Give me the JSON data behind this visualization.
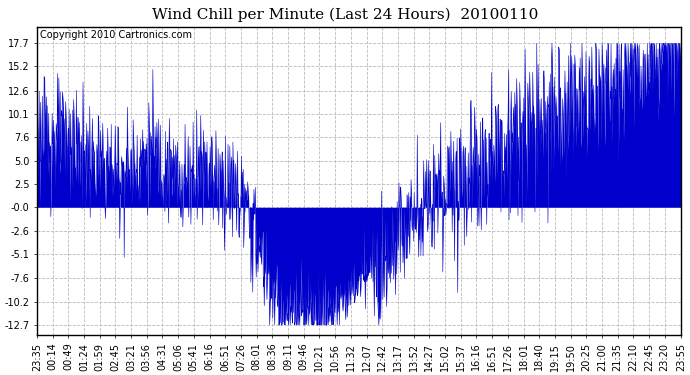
{
  "title": "Wind Chill per Minute (Last 24 Hours)  20100110",
  "copyright": "Copyright 2010 Cartronics.com",
  "yticks": [
    17.7,
    15.2,
    12.6,
    10.1,
    7.6,
    5.0,
    2.5,
    -0.0,
    -2.6,
    -5.1,
    -7.6,
    -10.2,
    -12.7
  ],
  "ylim": [
    -13.8,
    19.5
  ],
  "line_color": "#0000cc",
  "bg_color": "#ffffff",
  "plot_bg_color": "#ffffff",
  "grid_color": "#bbbbbb",
  "title_fontsize": 11,
  "copyright_fontsize": 7,
  "tick_fontsize": 7,
  "xtick_labels": [
    "23:35",
    "00:14",
    "00:49",
    "01:24",
    "01:59",
    "02:45",
    "03:21",
    "03:56",
    "04:31",
    "05:06",
    "05:41",
    "06:16",
    "06:51",
    "07:26",
    "08:01",
    "08:36",
    "09:11",
    "09:46",
    "10:21",
    "10:56",
    "11:32",
    "12:07",
    "12:42",
    "13:17",
    "13:52",
    "14:27",
    "15:02",
    "15:37",
    "16:16",
    "16:51",
    "17:26",
    "18:01",
    "18:40",
    "19:15",
    "19:50",
    "20:25",
    "21:00",
    "21:35",
    "22:10",
    "22:45",
    "23:20",
    "23:55"
  ]
}
